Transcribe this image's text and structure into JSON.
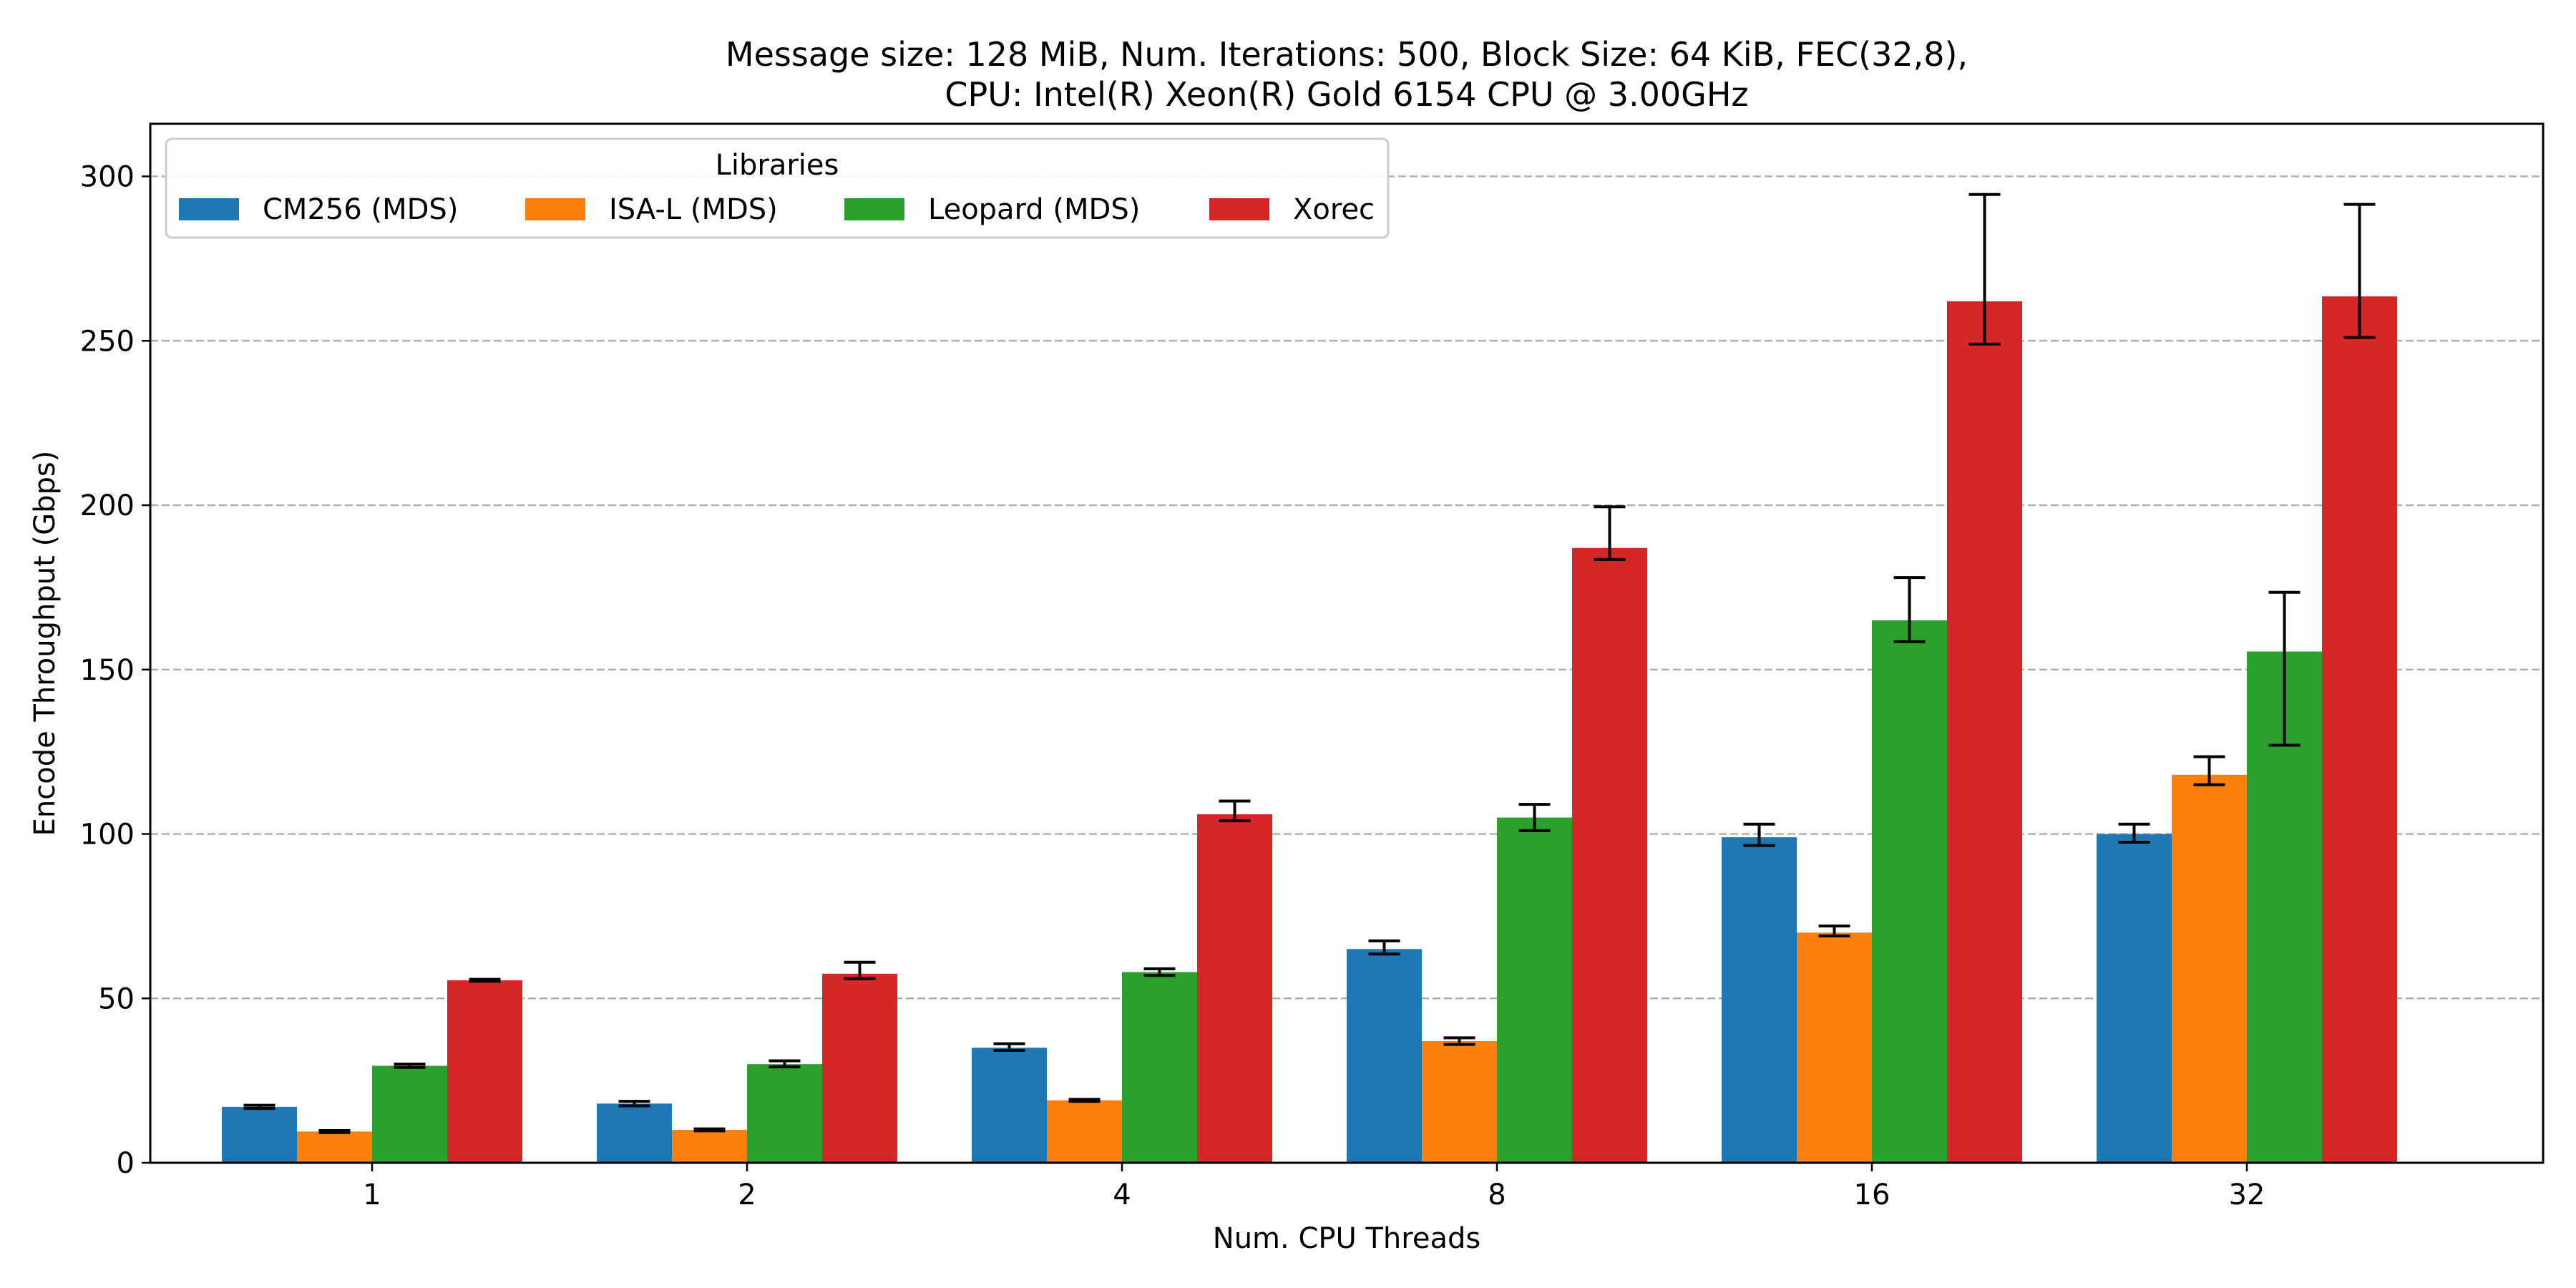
{
  "chart_data": {
    "type": "bar",
    "title_line1": "Message size: 128 MiB, Num. Iterations: 500, Block Size: 64 KiB, FEC(32,8),",
    "title_line2": "CPU: Intel(R) Xeon(R) Gold 6154 CPU @ 3.00GHz",
    "xlabel": "Num. CPU Threads",
    "ylabel": "Encode Throughput (Gbps)",
    "categories": [
      "1",
      "2",
      "4",
      "8",
      "16",
      "32"
    ],
    "ylim": [
      0,
      316
    ],
    "yticks": [
      0,
      50,
      100,
      150,
      200,
      250,
      300
    ],
    "grid": "y-dashed",
    "legend": {
      "title": "Libraries",
      "placement": "top-left"
    },
    "series": [
      {
        "name": "CM256 (MDS)",
        "color": "#1f77b4",
        "values": [
          17,
          18,
          35,
          65,
          99,
          100
        ],
        "err_low": [
          16.5,
          17.3,
          34.2,
          63.5,
          96.5,
          97.5
        ],
        "err_high": [
          17.5,
          18.7,
          36.2,
          67.5,
          103,
          103
        ]
      },
      {
        "name": "ISA-L (MDS)",
        "color": "#ff7f0e",
        "values": [
          9.5,
          10,
          19,
          37,
          70,
          118
        ],
        "err_low": [
          9.2,
          9.7,
          18.7,
          36,
          69,
          115
        ],
        "err_high": [
          9.8,
          10.3,
          19.3,
          38,
          72,
          123.5
        ]
      },
      {
        "name": "Leopard (MDS)",
        "color": "#2ca02c",
        "values": [
          29.5,
          30,
          58,
          105,
          165,
          155.5
        ],
        "err_low": [
          29,
          29.2,
          57,
          101,
          158.5,
          127
        ],
        "err_high": [
          30,
          31,
          59,
          109,
          178,
          173.5
        ]
      },
      {
        "name": "Xorec",
        "color": "#d62728",
        "values": [
          55.5,
          57.5,
          106,
          187,
          262,
          263.5
        ],
        "err_low": [
          55.2,
          56,
          104,
          183.5,
          249,
          251
        ],
        "err_high": [
          55.8,
          61,
          110,
          199.5,
          294.5,
          291.5
        ]
      }
    ]
  }
}
